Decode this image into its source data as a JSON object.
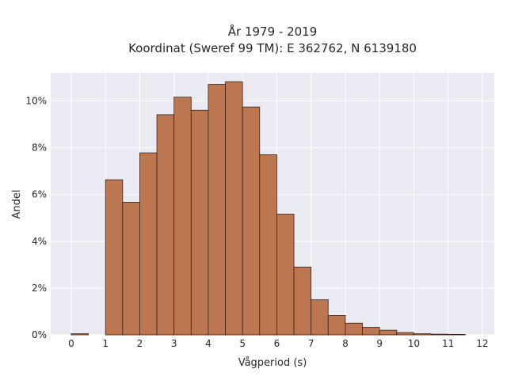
{
  "chart_data": {
    "type": "bar",
    "title_line1": "År 1979 - 2019",
    "title_line2": "Koordinat (Sweref 99 TM): E 362762, N 6139180",
    "xlabel": "Vågperiod (s)",
    "ylabel": "Andel",
    "xlim": [
      -0.6,
      12.35
    ],
    "ylim": [
      0,
      11.2
    ],
    "x_ticks": [
      0,
      1,
      2,
      3,
      4,
      5,
      6,
      7,
      8,
      9,
      10,
      11,
      12
    ],
    "y_ticks": [
      0,
      2,
      4,
      6,
      8,
      10
    ],
    "y_tick_labels": [
      "0%",
      "2%",
      "4%",
      "6%",
      "8%",
      "10%"
    ],
    "grid": true,
    "bin_width": 0.5,
    "bars": [
      {
        "x0": 0.0,
        "value": 0.05
      },
      {
        "x0": 1.0,
        "value": 6.63
      },
      {
        "x0": 1.5,
        "value": 5.67
      },
      {
        "x0": 2.0,
        "value": 7.78
      },
      {
        "x0": 2.5,
        "value": 9.41
      },
      {
        "x0": 3.0,
        "value": 10.16
      },
      {
        "x0": 3.5,
        "value": 9.6
      },
      {
        "x0": 4.0,
        "value": 10.71
      },
      {
        "x0": 4.5,
        "value": 10.82
      },
      {
        "x0": 5.0,
        "value": 9.74
      },
      {
        "x0": 5.5,
        "value": 7.7
      },
      {
        "x0": 6.0,
        "value": 5.16
      },
      {
        "x0": 6.5,
        "value": 2.9
      },
      {
        "x0": 7.0,
        "value": 1.5
      },
      {
        "x0": 7.5,
        "value": 0.83
      },
      {
        "x0": 8.0,
        "value": 0.5
      },
      {
        "x0": 8.5,
        "value": 0.32
      },
      {
        "x0": 9.0,
        "value": 0.2
      },
      {
        "x0": 9.5,
        "value": 0.1
      },
      {
        "x0": 10.0,
        "value": 0.05
      },
      {
        "x0": 10.5,
        "value": 0.03
      },
      {
        "x0": 11.0,
        "value": 0.02
      }
    ],
    "colors": {
      "bar_fill": "#bc7650",
      "bar_edge": "#3d2417",
      "plot_bg": "#eaeaf2",
      "grid": "#ffffff"
    }
  }
}
